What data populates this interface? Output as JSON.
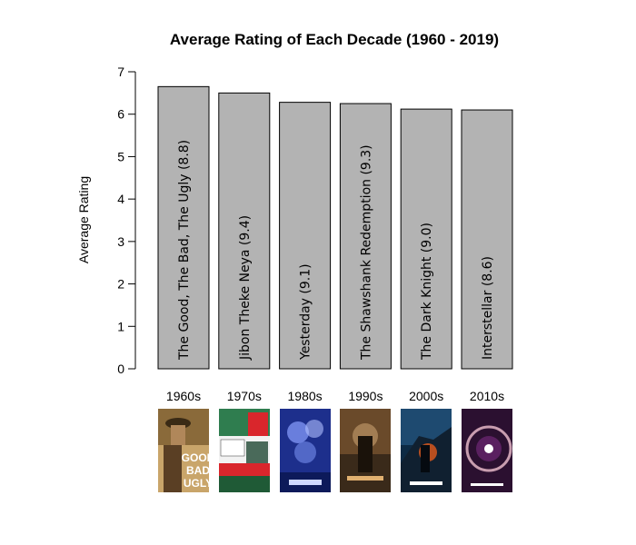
{
  "chart_data": {
    "type": "bar",
    "title": "Average Rating of Each Decade (1960 - 2019)",
    "xlabel": "",
    "ylabel": "Average Rating",
    "ylim": [
      0,
      7
    ],
    "yticks": [
      0,
      1,
      2,
      3,
      4,
      5,
      6,
      7
    ],
    "categories": [
      "1960s",
      "1970s",
      "1980s",
      "1990s",
      "2000s",
      "2010s"
    ],
    "values": [
      6.65,
      6.5,
      6.28,
      6.25,
      6.12,
      6.1
    ],
    "bar_labels": [
      "The Good, The Bad, The Ugly (8.8)",
      "Jibon Theke Neya (9.4)",
      "Yesterday (9.1)",
      "The Shawshank Redemption (9.3)",
      "The Dark Knight (9.0)",
      "Interstellar (8.6)"
    ],
    "bar_color": "#b3b3b3",
    "grid": false,
    "legend": "none"
  },
  "posters": [
    {
      "name": "poster-good-bad-ugly-icon",
      "text": "GOOD BAD UGLY",
      "bg": "#c9a56a",
      "fg": "#ffffff"
    },
    {
      "name": "poster-jibon-theke-neya-icon",
      "text": "",
      "bg": "#2f7d4f",
      "fg": "#d9262c"
    },
    {
      "name": "poster-yesterday-icon",
      "text": "",
      "bg": "#1d2f8c",
      "fg": "#cfd8ff"
    },
    {
      "name": "poster-shawshank-icon",
      "text": "",
      "bg": "#3a2a1a",
      "fg": "#e0b070"
    },
    {
      "name": "poster-dark-knight-icon",
      "text": "",
      "bg": "#0d2a44",
      "fg": "#e25a1c"
    },
    {
      "name": "poster-interstellar-icon",
      "text": "",
      "bg": "#2b1030",
      "fg": "#e0a0c0"
    }
  ]
}
